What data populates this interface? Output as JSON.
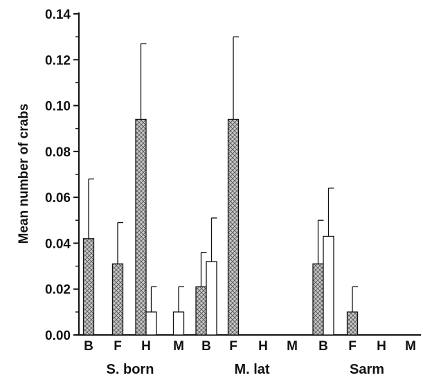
{
  "chart_data": {
    "type": "bar",
    "title": "",
    "xlabel": "",
    "ylabel": "Mean number of crabs",
    "ylim": [
      0,
      0.14
    ],
    "yticks": [
      "0.00",
      "0.02",
      "0.04",
      "0.06",
      "0.08",
      "0.10",
      "0.12",
      "0.14"
    ],
    "grid": false,
    "legend": "none",
    "colors": {
      "hatched_fill": "#c8c8c8",
      "hatch_line": "#555555",
      "open_fill": "#ffffff",
      "stroke": "#111111"
    },
    "groups": [
      {
        "label": "S. born",
        "categories": [
          {
            "label": "B",
            "bars": [
              {
                "style": "hatched",
                "value": 0.042,
                "error": 0.026
              }
            ]
          },
          {
            "label": "F",
            "bars": [
              {
                "style": "hatched",
                "value": 0.031,
                "error": 0.018
              }
            ]
          },
          {
            "label": "H",
            "bars": [
              {
                "style": "hatched",
                "value": 0.094,
                "error": 0.033
              },
              {
                "style": "open",
                "value": 0.01,
                "error": 0.011
              }
            ]
          },
          {
            "label": "M",
            "bars": [
              {
                "style": "open",
                "value": 0.01,
                "error": 0.011
              }
            ]
          }
        ]
      },
      {
        "label": "M. lat",
        "categories": [
          {
            "label": "B",
            "bars": [
              {
                "style": "hatched",
                "value": 0.021,
                "error": 0.015
              },
              {
                "style": "open",
                "value": 0.032,
                "error": 0.019
              }
            ]
          },
          {
            "label": "F",
            "bars": [
              {
                "style": "hatched",
                "value": 0.094,
                "error": 0.036
              }
            ]
          },
          {
            "label": "H",
            "bars": []
          },
          {
            "label": "M",
            "bars": []
          }
        ]
      },
      {
        "label": "Sarm",
        "categories": [
          {
            "label": "B",
            "bars": [
              {
                "style": "hatched",
                "value": 0.031,
                "error": 0.019
              },
              {
                "style": "open",
                "value": 0.043,
                "error": 0.021
              }
            ]
          },
          {
            "label": "F",
            "bars": [
              {
                "style": "hatched",
                "value": 0.01,
                "error": 0.011
              }
            ]
          },
          {
            "label": "H",
            "bars": []
          },
          {
            "label": "M",
            "bars": []
          }
        ]
      }
    ]
  }
}
